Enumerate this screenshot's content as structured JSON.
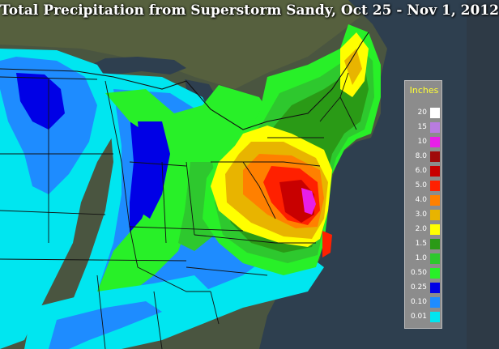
{
  "title": "Total Precipitation from Superstorm Sandy, Oct 25 - Nov 1, 2012",
  "legend": {
    "title": "Inches",
    "title_color": "#ffff33",
    "entries": [
      {
        "label": "20",
        "color": "#ffffff"
      },
      {
        "label": "15",
        "color": "#b87ce0"
      },
      {
        "label": "10",
        "color": "#e81ee8"
      },
      {
        "label": "8.0",
        "color": "#a00a0a"
      },
      {
        "label": "6.0",
        "color": "#c80000"
      },
      {
        "label": "5.0",
        "color": "#ff2000"
      },
      {
        "label": "4.0",
        "color": "#ff8000"
      },
      {
        "label": "3.0",
        "color": "#e8b400"
      },
      {
        "label": "2.0",
        "color": "#ffff00"
      },
      {
        "label": "1.5",
        "color": "#2a9a16"
      },
      {
        "label": "1.0",
        "color": "#2ec82e"
      },
      {
        "label": "0.50",
        "color": "#28f028"
      },
      {
        "label": "0.25",
        "color": "#0000e6"
      },
      {
        "label": "0.10",
        "color": "#1e8cff"
      },
      {
        "label": "0.01",
        "color": "#00e6f0"
      }
    ]
  },
  "colors": {
    "land": "#4a5540",
    "water": "#2e3f4f",
    "borders": "#111111"
  }
}
